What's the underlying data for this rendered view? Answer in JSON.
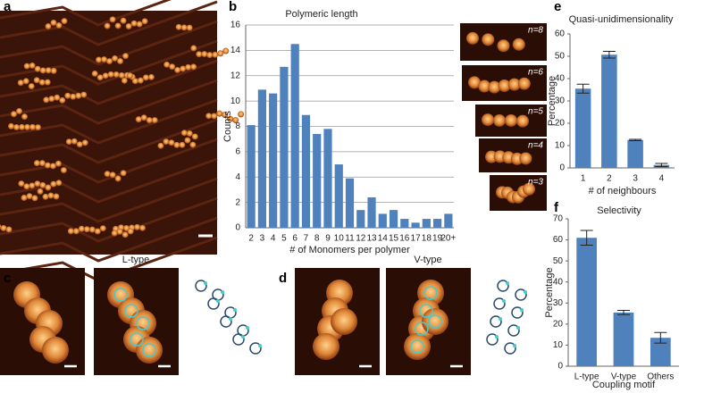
{
  "panel_labels": {
    "a": "a",
    "b": "b",
    "c": "c",
    "d": "d",
    "e": "e",
    "f": "f"
  },
  "panel_c": {
    "title": "L-type"
  },
  "panel_d": {
    "title": "V-type"
  },
  "chart_data": [
    {
      "type": "bar",
      "title": "Polymeric length",
      "x_label": "# of Monomers per polymer",
      "y_label": "Counts",
      "categories": [
        "2",
        "3",
        "4",
        "5",
        "6",
        "7",
        "8",
        "9",
        "10",
        "11",
        "12",
        "13",
        "14",
        "15",
        "16",
        "17",
        "18",
        "19",
        "20+"
      ],
      "values": [
        8.1,
        10.9,
        10.6,
        12.7,
        14.5,
        8.9,
        7.4,
        7.8,
        5.0,
        3.9,
        1.4,
        2.4,
        1.1,
        1.4,
        0.7,
        0.4,
        0.7,
        0.7,
        1.1
      ],
      "color": "#4f81bd",
      "ylim": [
        0,
        16
      ],
      "yticks": [
        0,
        2,
        4,
        6,
        8,
        10,
        12,
        14,
        16
      ],
      "grid": true,
      "insets": [
        "n=8",
        "n=6",
        "n=5",
        "n=4",
        "n=3"
      ]
    },
    {
      "type": "bar",
      "title": "Quasi-unidimensionality",
      "x_label": "# of neighbours",
      "y_label": "Percentage",
      "categories": [
        "1",
        "2",
        "3",
        "4"
      ],
      "values": [
        35.5,
        50.7,
        12.5,
        1.3
      ],
      "errors": [
        2.0,
        1.5,
        0.3,
        0.7
      ],
      "color": "#4f81bd",
      "ylim": [
        0,
        60
      ],
      "yticks": [
        0,
        10,
        20,
        30,
        40,
        50,
        60
      ],
      "grid": false
    },
    {
      "type": "bar",
      "title": "Selectivity",
      "x_label": "Coupling motif",
      "y_label": "Percentage",
      "categories": [
        "L-type",
        "V-type",
        "Others"
      ],
      "values": [
        61.0,
        25.5,
        13.5
      ],
      "errors": [
        3.5,
        1.0,
        2.5
      ],
      "color": "#4f81bd",
      "ylim": [
        0,
        70
      ],
      "yticks": [
        0,
        10,
        20,
        30,
        40,
        50,
        60,
        70
      ],
      "grid": false
    }
  ]
}
